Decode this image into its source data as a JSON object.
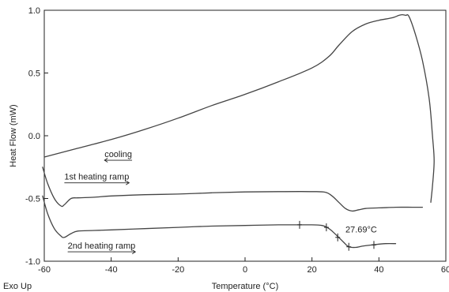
{
  "chart_data": {
    "type": "line",
    "title": "",
    "xlabel": "Temperature (°C)",
    "ylabel": "Heat Flow (mW)",
    "corner_label": "Exo Up",
    "xlim": [
      -60,
      60
    ],
    "ylim": [
      -1.0,
      1.0
    ],
    "x_ticks": [
      -60,
      -40,
      -20,
      0,
      20,
      40,
      60
    ],
    "x_tick_labels": [
      "-60",
      "-40",
      "-20",
      "0",
      "20",
      "40",
      "60"
    ],
    "y_ticks": [
      1.0,
      0.5,
      0.0,
      -0.5,
      -1.0
    ],
    "y_tick_labels": [
      "1.0",
      "0.5",
      "0.0",
      "-0.5",
      "-1.0"
    ],
    "grid": false,
    "series": [
      {
        "name": "cooling",
        "direction": "left",
        "x": [
          -60.0,
          -50,
          -40,
          -30,
          -20,
          -10,
          0,
          10,
          20,
          25,
          28,
          32,
          36,
          40,
          44,
          46,
          47,
          48,
          49,
          51,
          53,
          55,
          56,
          56.5,
          56.0,
          55.5
        ],
        "y": [
          -0.17,
          -0.1,
          -0.03,
          0.05,
          0.14,
          0.24,
          0.33,
          0.43,
          0.54,
          0.63,
          0.72,
          0.83,
          0.89,
          0.92,
          0.94,
          0.96,
          0.965,
          0.96,
          0.95,
          0.8,
          0.6,
          0.3,
          0.0,
          -0.2,
          -0.4,
          -0.53
        ]
      },
      {
        "name": "1st heating ramp",
        "direction": "right",
        "x": [
          -60.5,
          -59,
          -57,
          -55,
          -54,
          -52,
          -50,
          -45,
          -40,
          -30,
          -20,
          -10,
          0,
          10,
          20,
          24,
          26,
          28,
          30,
          32,
          34,
          36,
          40,
          45,
          50,
          53
        ],
        "y": [
          -0.25,
          -0.38,
          -0.5,
          -0.56,
          -0.55,
          -0.5,
          -0.495,
          -0.49,
          -0.48,
          -0.47,
          -0.465,
          -0.455,
          -0.448,
          -0.445,
          -0.445,
          -0.45,
          -0.48,
          -0.53,
          -0.58,
          -0.6,
          -0.59,
          -0.58,
          -0.575,
          -0.57,
          -0.57,
          -0.57
        ]
      },
      {
        "name": "2nd heating ramp",
        "direction": "right",
        "x": [
          -60.5,
          -59,
          -57,
          -55,
          -54,
          -52,
          -50,
          -45,
          -40,
          -30,
          -20,
          -10,
          0,
          10,
          16,
          20,
          23,
          24.5,
          26,
          28,
          29.5,
          31,
          33,
          35,
          38,
          42,
          45
        ],
        "y": [
          -0.48,
          -0.62,
          -0.74,
          -0.8,
          -0.81,
          -0.78,
          -0.76,
          -0.755,
          -0.75,
          -0.74,
          -0.73,
          -0.72,
          -0.715,
          -0.71,
          -0.71,
          -0.71,
          -0.715,
          -0.73,
          -0.76,
          -0.81,
          -0.85,
          -0.885,
          -0.89,
          -0.88,
          -0.87,
          -0.86,
          -0.86
        ]
      }
    ],
    "annotations": [
      {
        "text": "cooling",
        "x": -42,
        "y": -0.17
      },
      {
        "text": "1st heating ramp",
        "x": -54,
        "y": -0.35
      },
      {
        "text": "2nd heating ramp",
        "x": -53,
        "y": -0.9
      },
      {
        "text": "27.69°C",
        "x": 30,
        "y": -0.77,
        "marker_x": 27.69,
        "marker_y": -0.81
      }
    ],
    "transition_markers": [
      {
        "x": 16.3,
        "y": -0.71
      },
      {
        "x": 24.3,
        "y": -0.73
      },
      {
        "x": 27.69,
        "y": -0.81
      },
      {
        "x": 31.0,
        "y": -0.885
      },
      {
        "x": 38.5,
        "y": -0.87
      }
    ]
  }
}
